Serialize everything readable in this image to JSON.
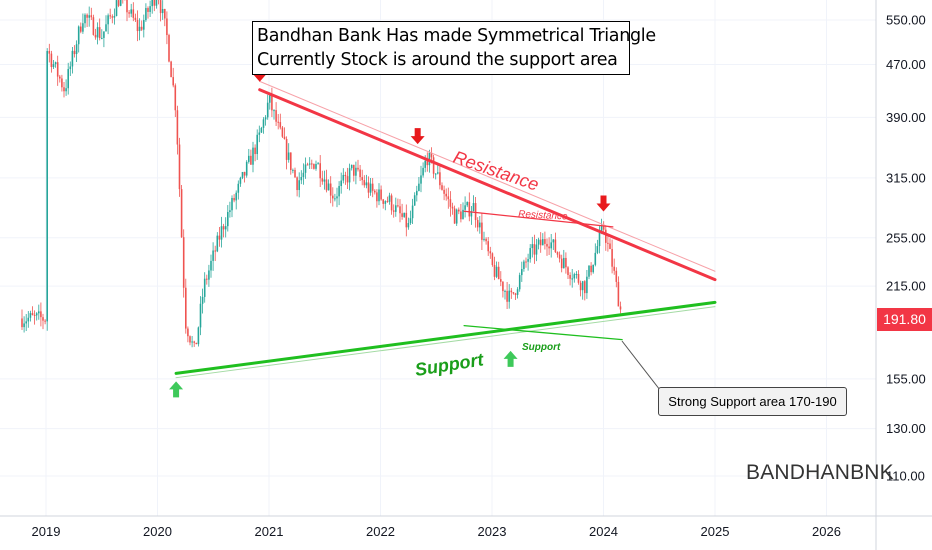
{
  "annotation": {
    "line1": "Bandhan Bank Has made Symmetrical Triangle",
    "line2": "Currently Stock is around the support area"
  },
  "symbol": "BANDHANBNK",
  "current_price_label": "191.80",
  "callout_text": "Strong Support area 170-190",
  "labels": {
    "resistance_main": "Resistance",
    "resistance_minor": "Resistance",
    "support_main": "Support",
    "support_minor": "Support"
  },
  "colors": {
    "bull": "#26a69a",
    "bear": "#ef5350",
    "resistance": "#f23645",
    "support": "#1fbf1f",
    "support_dark": "#1a9e1a",
    "arrow_down": "#e8191c",
    "arrow_up": "#3ec95a",
    "price_tag": "#f23645"
  },
  "chart_data": {
    "type": "candlestick",
    "scale": "log",
    "y_ticks": [
      550,
      470,
      390,
      315,
      255,
      215,
      155,
      130,
      110
    ],
    "y_tick_labels": [
      "550.00",
      "470.00",
      "390.00",
      "315.00",
      "255.00",
      "215.00",
      "155.00",
      "130.00",
      "110.00"
    ],
    "x_ticks": [
      "2019",
      "2020",
      "2021",
      "2022",
      "2023",
      "2024",
      "2025",
      "2026"
    ],
    "last_price": 191.8,
    "price_path": [
      [
        "2019-01",
        500
      ],
      [
        "2019-03",
        430
      ],
      [
        "2019-05",
        560
      ],
      [
        "2019-07",
        520
      ],
      [
        "2019-09",
        600
      ],
      [
        "2019-11",
        530
      ],
      [
        "2020-01",
        610
      ],
      [
        "2020-02",
        520
      ],
      [
        "2020-03",
        400
      ],
      [
        "2020-04",
        190
      ],
      [
        "2020-05",
        170
      ],
      [
        "2020-06",
        215
      ],
      [
        "2020-08",
        265
      ],
      [
        "2020-10",
        310
      ],
      [
        "2020-12",
        365
      ],
      [
        "2021-01",
        415
      ],
      [
        "2021-02",
        375
      ],
      [
        "2021-04",
        310
      ],
      [
        "2021-06",
        335
      ],
      [
        "2021-08",
        295
      ],
      [
        "2021-10",
        325
      ],
      [
        "2021-12",
        300
      ],
      [
        "2022-02",
        290
      ],
      [
        "2022-04",
        265
      ],
      [
        "2022-06",
        340
      ],
      [
        "2022-07",
        320
      ],
      [
        "2022-09",
        275
      ],
      [
        "2022-11",
        285
      ],
      [
        "2023-01",
        230
      ],
      [
        "2023-03",
        205
      ],
      [
        "2023-05",
        240
      ],
      [
        "2023-07",
        255
      ],
      [
        "2023-09",
        230
      ],
      [
        "2023-11",
        215
      ],
      [
        "2024-01",
        265
      ],
      [
        "2024-02",
        230
      ],
      [
        "2024-03",
        191.8
      ]
    ],
    "trendlines": {
      "resistance": [
        [
          "2020-12",
          430
        ],
        [
          "2025-01",
          220
        ]
      ],
      "support": [
        [
          "2020-03",
          158
        ],
        [
          "2025-01",
          203
        ]
      ],
      "minor_resistance": [
        [
          "2022-10",
          280
        ],
        [
          "2024-02",
          265
        ]
      ],
      "minor_support": [
        [
          "2022-10",
          187
        ],
        [
          "2024-03",
          178
        ]
      ]
    },
    "markers": {
      "down_arrows": [
        [
          "2020-12",
          430
        ],
        [
          "2022-05",
          345
        ],
        [
          "2024-01",
          272
        ]
      ],
      "up_arrows": [
        [
          "2020-03",
          158
        ],
        [
          "2023-03",
          176
        ]
      ]
    }
  }
}
